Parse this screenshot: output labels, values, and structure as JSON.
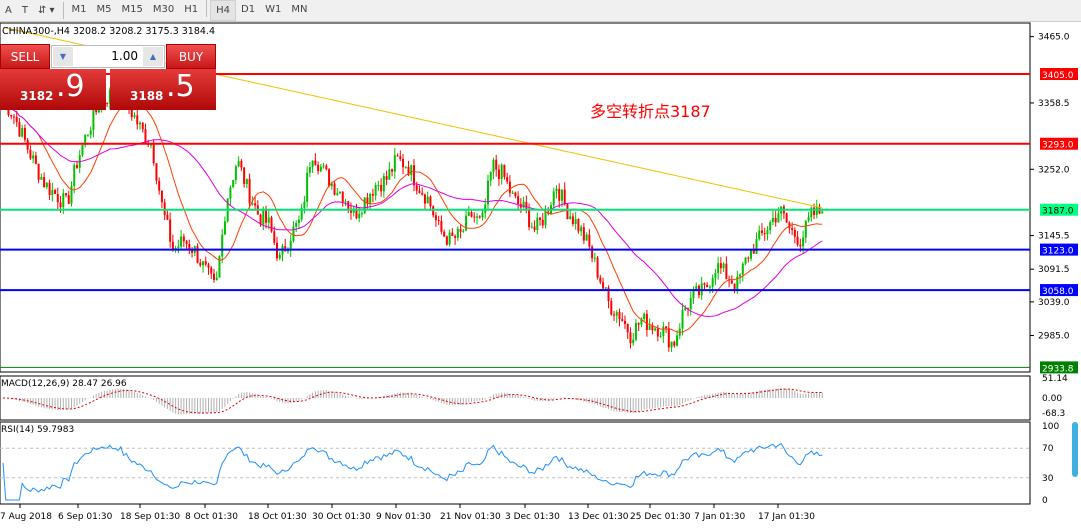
{
  "toolbar": {
    "items": [
      "A",
      "T",
      "M1",
      "M5",
      "M15",
      "M30",
      "H1",
      "H4",
      "D1",
      "W1",
      "MN"
    ],
    "selected": "H4"
  },
  "chart": {
    "symbol_line": "CHINA300-,H4  3208.2 3208.2 3175.3 3184.4",
    "annotation": "多空转折点3187",
    "annotation_color": "#ff0000"
  },
  "trade_panel": {
    "sell_label": "SELL",
    "buy_label": "BUY",
    "lot": "1.00",
    "sell_main": "3182",
    "sell_frac": ".9",
    "buy_main": "3188",
    "buy_frac": ".5"
  },
  "chart_data": {
    "type": "candlestick",
    "price_axis_ticks": [
      "3465.0",
      "3358.5",
      "3252.0",
      "3145.5",
      "3091.5",
      "3039.0",
      "2985.0"
    ],
    "price_range": [
      2933.8,
      3465
    ],
    "horizontal_lines": [
      {
        "value": 3405.0,
        "label": "3405.0",
        "color": "#ff0000"
      },
      {
        "value": 3293.0,
        "label": "3293.0",
        "color": "#ff0000"
      },
      {
        "value": 3187.0,
        "label": "3187.0",
        "color": "#00e676"
      },
      {
        "value": 3123.0,
        "label": "3123.0",
        "color": "#0000ff"
      },
      {
        "value": 3058.0,
        "label": "3058.0",
        "color": "#0000ff"
      },
      {
        "value": 2933.8,
        "label": "2933.8",
        "color": "#008000"
      }
    ],
    "closes": [
      3363,
      3339,
      3299,
      3259,
      3227,
      3211,
      3195,
      3267,
      3315,
      3355,
      3371,
      3379,
      3347,
      3315,
      3291,
      3187,
      3122,
      3138,
      3122,
      3090,
      3058,
      3203,
      3267,
      3219,
      3179,
      3163,
      3106,
      3146,
      3171,
      3283,
      3251,
      3227,
      3211,
      3179,
      3203,
      3227,
      3235,
      3267,
      3259,
      3227,
      3203,
      3154,
      3138,
      3146,
      3179,
      3163,
      3259,
      3243,
      3203,
      3187,
      3154,
      3179,
      3227,
      3187,
      3163,
      3130,
      3082,
      3034,
      3018,
      2986,
      3010,
      3002,
      2994,
      2970,
      3026,
      3050,
      3058,
      3098,
      3082,
      3066,
      3114,
      3138,
      3163,
      3187,
      3154,
      3138,
      3179,
      3184
    ],
    "date_labels": [
      "7 Aug 2018",
      "6 Sep 01:30",
      "18 Sep 01:30",
      "8 Oct 01:30",
      "18 Oct 01:30",
      "30 Oct 01:30",
      "9 Nov 01:30",
      "21 Nov 01:30",
      "3 Dec 01:30",
      "13 Dec 01:30",
      "25 Dec 01:30",
      "7 Jan 01:30",
      "17 Jan 01:30"
    ],
    "macd": {
      "label": "MACD(12,26,9) 28.47 26.96",
      "ticks": [
        "51.14",
        "0.00",
        "-68.3"
      ]
    },
    "rsi": {
      "label": "RSI(14) 59.7983",
      "ticks": [
        "100",
        "70",
        "30",
        "0"
      ],
      "levels": [
        70,
        30
      ]
    },
    "colors": {
      "bull": "#00c000",
      "bear": "#ff0000",
      "ma_fast": "#ff4000",
      "ma_mid": "#e000e0",
      "ma_slow": "#f0c000",
      "rsi": "#1e90ff"
    }
  }
}
